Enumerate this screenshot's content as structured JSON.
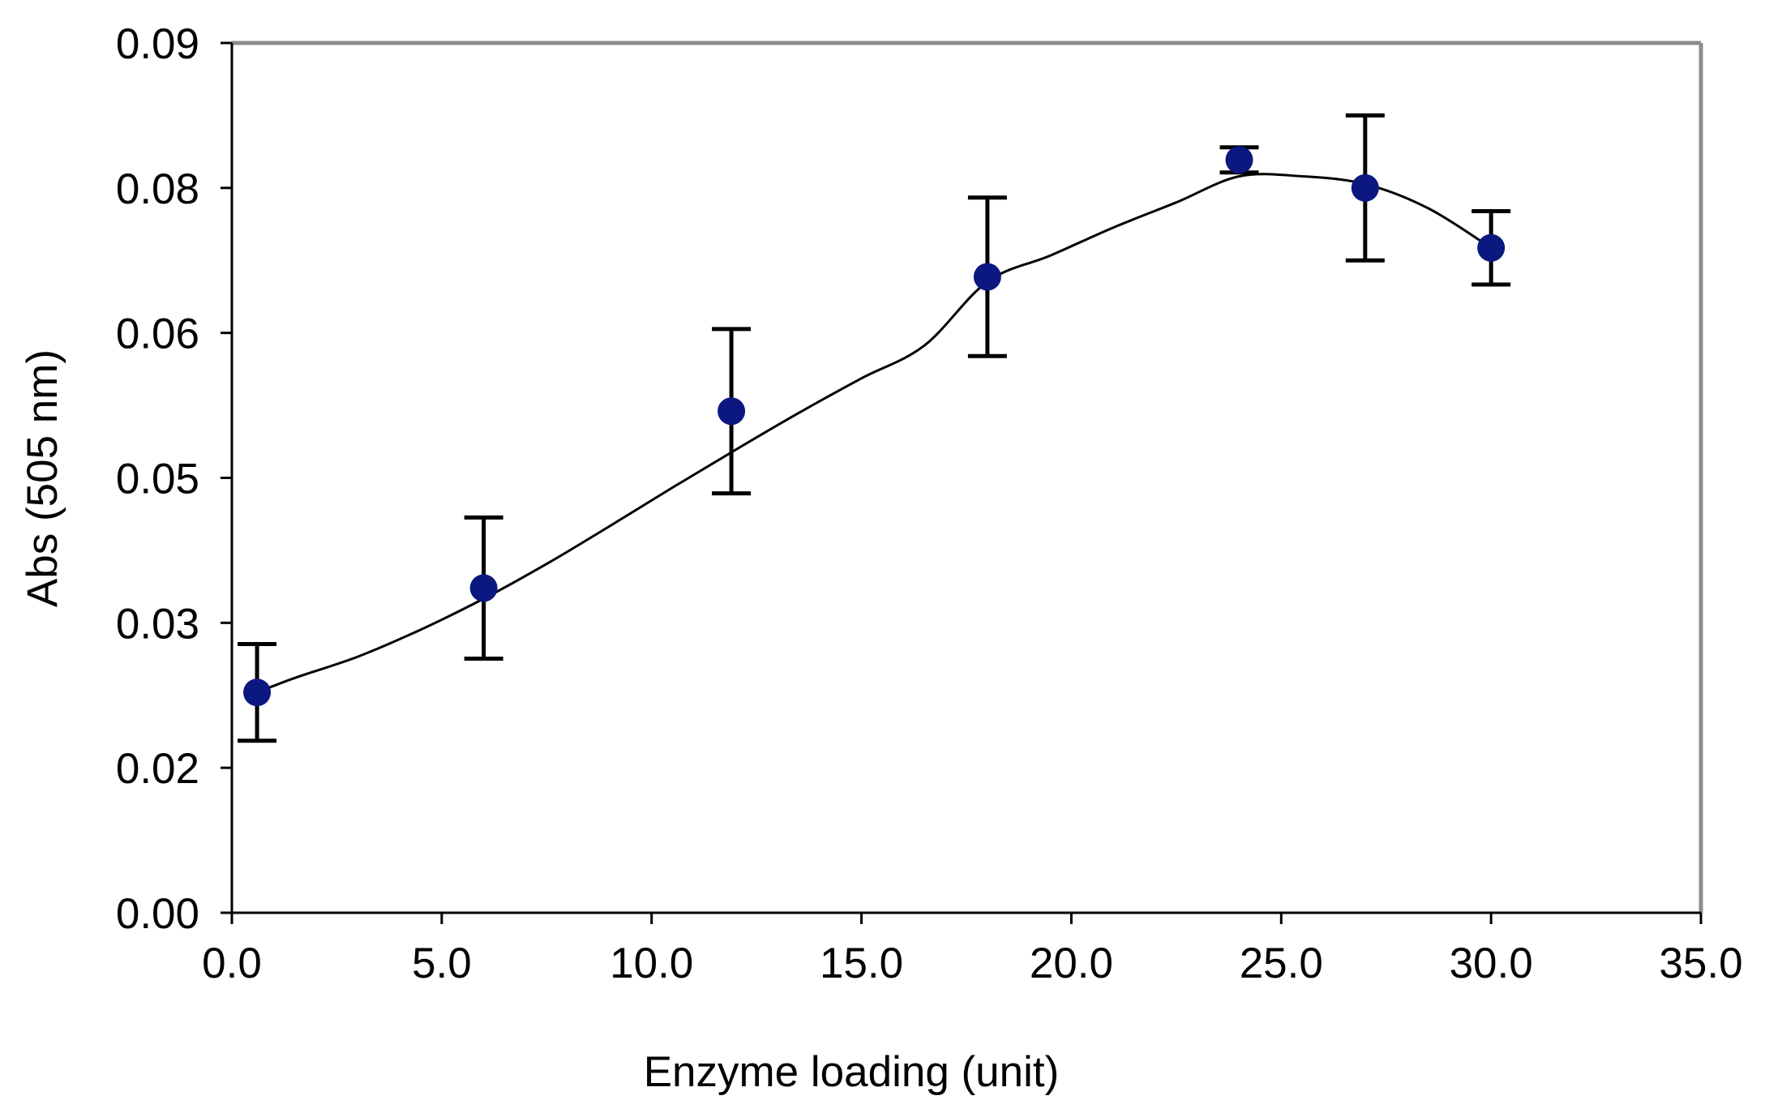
{
  "chart_data": {
    "type": "scatter",
    "title": "",
    "xlabel": "Enzyme loading (unit)",
    "ylabel": "Abs (505 nm)",
    "xlim": [
      0,
      35
    ],
    "xticks": [
      0,
      5,
      10,
      15,
      20,
      25,
      30,
      35
    ],
    "xtick_labels": [
      "0.0",
      "5.0",
      "10.0",
      "15.0",
      "20.0",
      "25.0",
      "30.0",
      "35.0"
    ],
    "ytick_labels": [
      "0.00",
      "0.02",
      "0.03",
      "0.05",
      "0.06",
      "0.08",
      "0.09"
    ],
    "ytick_values": [
      0.0,
      0.015,
      0.03,
      0.045,
      0.06,
      0.075,
      0.09
    ],
    "ylim": [
      0,
      0.09
    ],
    "grid": false,
    "legend": "none",
    "series": [
      {
        "x": [
          0.6,
          6.0,
          11.9,
          18.0,
          24.0,
          27.0,
          30.0
        ],
        "y": [
          0.0228,
          0.0336,
          0.0519,
          0.0658,
          0.0779,
          0.075,
          0.0688
        ],
        "error": [
          0.005,
          0.0073,
          0.0085,
          0.0082,
          0.0013,
          0.0075,
          0.0038
        ]
      }
    ],
    "trendline": {
      "type": "polynomial fit",
      "x": [
        0.6,
        1.5,
        3,
        4.5,
        6,
        7.5,
        9,
        10.5,
        12,
        13.5,
        15,
        16.5,
        18,
        19.5,
        21,
        22.5,
        24,
        25.5,
        27,
        28.5,
        30
      ],
      "y": [
        0.0228,
        0.0243,
        0.0265,
        0.0293,
        0.0325,
        0.0361,
        0.04,
        0.044,
        0.0479,
        0.0517,
        0.0553,
        0.0587,
        0.0653,
        0.068,
        0.0709,
        0.0735,
        0.0762,
        0.0762,
        0.0754,
        0.0729,
        0.0688
      ]
    },
    "colors": {
      "marker": "#0b1880",
      "line": "#000000",
      "axis": "#000000",
      "frame": "#8c8c8c"
    }
  }
}
